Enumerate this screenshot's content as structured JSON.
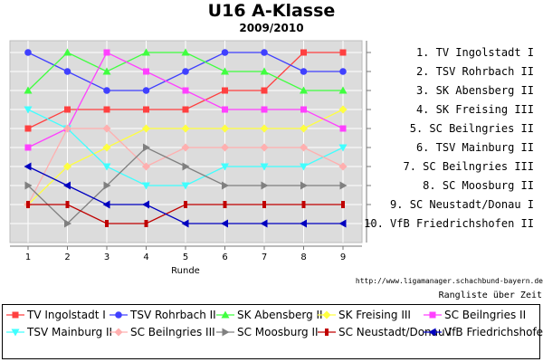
{
  "header": {
    "title": "U16 A-Klasse",
    "subtitle": "2009/2010"
  },
  "footer": {
    "source_url": "http://www.ligamanager.schachbund-bayern.de",
    "caption": "Rangliste über Zeit"
  },
  "chart_data": {
    "type": "line",
    "title": "U16 A-Klasse",
    "subtitle": "2009/2010",
    "xlabel": "Runde",
    "ylabel": "",
    "x": [
      1,
      2,
      3,
      4,
      5,
      6,
      7,
      8,
      9
    ],
    "ylim": [
      1,
      10
    ],
    "y_inverted": true,
    "grid": true,
    "legend_position": "bottom",
    "rank_labels": [
      "1. TV Ingolstadt I",
      "2. TSV Rohrbach II",
      "3. SK Abensberg II",
      "4. SK Freising III",
      "5. SC Beilngries II",
      "6. TSV Mainburg II",
      "7. SC Beilngries III",
      "8. SC Moosburg II",
      "9. SC Neustadt/Donau I",
      "10. VfB Friedrichshofen II"
    ],
    "series": [
      {
        "name": "TV Ingolstadt I",
        "color": "#ff4040",
        "marker": "square",
        "values": [
          5,
          4,
          4,
          4,
          4,
          3,
          3,
          1,
          1
        ]
      },
      {
        "name": "TSV Rohrbach II",
        "color": "#4040ff",
        "marker": "circle",
        "values": [
          1,
          2,
          3,
          3,
          2,
          1,
          1,
          2,
          2
        ]
      },
      {
        "name": "SK Abensberg II",
        "color": "#40ff40",
        "marker": "triangle-up",
        "values": [
          3,
          1,
          2,
          1,
          1,
          2,
          2,
          3,
          3
        ]
      },
      {
        "name": "SK Freising III",
        "color": "#ffff40",
        "marker": "diamond",
        "values": [
          9,
          7,
          6,
          5,
          5,
          5,
          5,
          5,
          4
        ]
      },
      {
        "name": "SC Beilngries II",
        "color": "#ff40ff",
        "marker": "square",
        "values": [
          6,
          5,
          1,
          2,
          3,
          4,
          4,
          4,
          5
        ]
      },
      {
        "name": "TSV Mainburg II",
        "color": "#40ffff",
        "marker": "triangle-down",
        "values": [
          4,
          5,
          7,
          8,
          8,
          7,
          7,
          7,
          6
        ]
      },
      {
        "name": "SC Beilngries III",
        "color": "#ffafaf",
        "marker": "diamond",
        "values": [
          9,
          5,
          5,
          7,
          6,
          6,
          6,
          6,
          7
        ]
      },
      {
        "name": "SC Moosburg II",
        "color": "#808080",
        "marker": "triangle-right",
        "values": [
          8,
          10,
          8,
          6,
          7,
          8,
          8,
          8,
          8
        ]
      },
      {
        "name": "SC Neustadt/Donau I",
        "color": "#c00000",
        "marker": "bar",
        "values": [
          9,
          9,
          10,
          10,
          9,
          9,
          9,
          9,
          9
        ]
      },
      {
        "name": "VfB Friedrichshofen II",
        "color": "#0000c0",
        "marker": "triangle-left",
        "values": [
          7,
          8,
          9,
          9,
          10,
          10,
          10,
          10,
          10
        ]
      }
    ]
  }
}
